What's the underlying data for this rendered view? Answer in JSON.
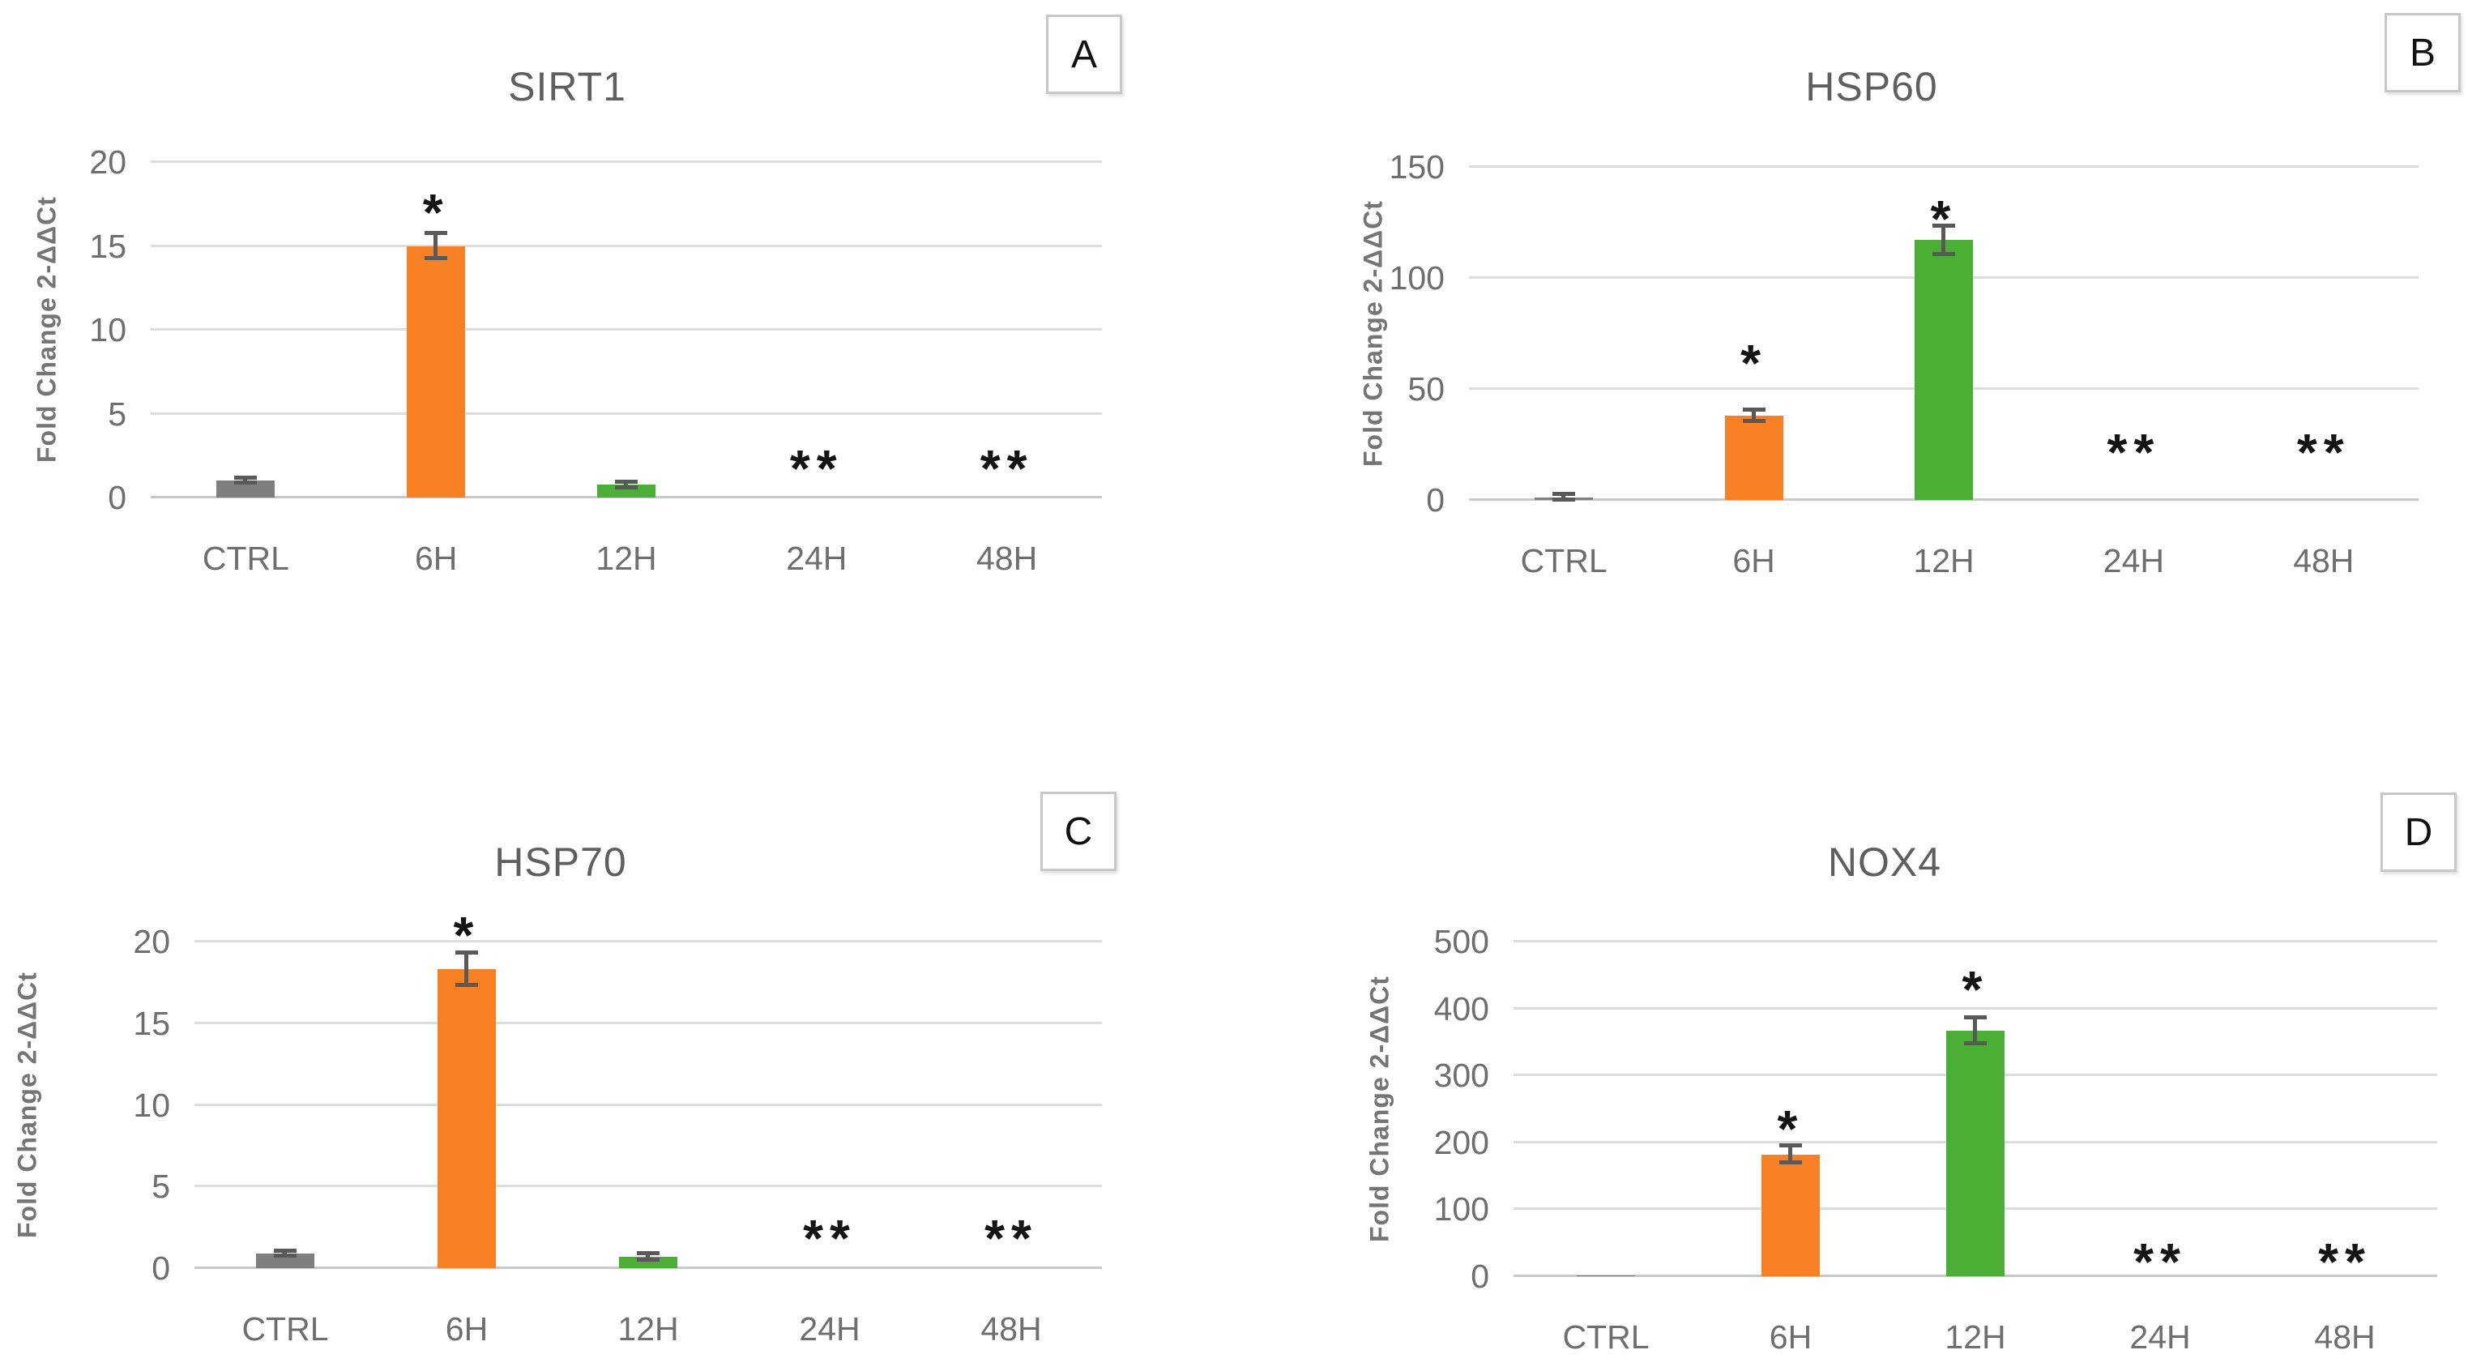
{
  "figure": {
    "background": "#FFFFFF",
    "ylabel": "Fold Change 2-ΔΔCt",
    "categories": [
      "CTRL",
      "6H",
      "12H",
      "24H",
      "48H"
    ],
    "significance_symbols": [
      "*",
      "**"
    ],
    "colors": {
      "ctrl_bar": "#7F7F7F",
      "h6_bar": "#F98125",
      "h12_bar": "#4CAF35",
      "error_bar": "#595959",
      "gridline": "#DCDCDC",
      "baseline": "#C9C9C9",
      "axis_text": "#6E6E6E",
      "title_text": "#5F5F5F",
      "significance": "#141414",
      "badge_border": "#C8C8C8"
    }
  },
  "chart_data": [
    {
      "type": "bar",
      "panel_label": "A",
      "title": "SIRT1",
      "xlabel": "",
      "ylabel": "Fold Change 2-ΔΔCt",
      "categories": [
        "CTRL",
        "6H",
        "12H",
        "24H",
        "48H"
      ],
      "values": [
        1.0,
        15.0,
        0.75,
        0,
        0
      ],
      "errors": [
        0.15,
        0.75,
        0.15,
        0,
        0
      ],
      "bar_colors": [
        "#7F7F7F",
        "#F98125",
        "#4CAF35",
        null,
        null
      ],
      "significance": [
        "",
        "*",
        "",
        "**",
        "**"
      ],
      "sig_y": [
        null,
        17.6,
        null,
        2.3,
        2.3
      ],
      "ylim": [
        0,
        20
      ],
      "yticks": [
        0,
        5,
        10,
        15,
        20
      ],
      "grid": true,
      "legend": false
    },
    {
      "type": "bar",
      "panel_label": "B",
      "title": "HSP60",
      "xlabel": "",
      "ylabel": "Fold Change 2-ΔΔCt",
      "categories": [
        "CTRL",
        "6H",
        "12H",
        "24H",
        "48H"
      ],
      "values": [
        1.0,
        38,
        117,
        0,
        0
      ],
      "errors": [
        1.5,
        2.5,
        6.5,
        0,
        0
      ],
      "bar_colors": [
        "#7F7F7F",
        "#F98125",
        "#4CAF35",
        null,
        null
      ],
      "significance": [
        "",
        "*",
        "*",
        "**",
        "**"
      ],
      "sig_y": [
        null,
        66,
        131,
        26,
        26
      ],
      "ylim": [
        0,
        150
      ],
      "yticks": [
        0,
        50,
        100,
        150
      ],
      "grid": true,
      "legend": false
    },
    {
      "type": "bar",
      "panel_label": "C",
      "title": "HSP70",
      "xlabel": "",
      "ylabel": "Fold Change 2-ΔΔCt",
      "categories": [
        "CTRL",
        "6H",
        "12H",
        "24H",
        "48H"
      ],
      "values": [
        0.9,
        18.3,
        0.7,
        0,
        0
      ],
      "errors": [
        0.15,
        1.0,
        0.2,
        0,
        0
      ],
      "bar_colors": [
        "#7F7F7F",
        "#F98125",
        "#4CAF35",
        null,
        null
      ],
      "significance": [
        "",
        "*",
        "",
        "**",
        "**"
      ],
      "sig_y": [
        null,
        21.0,
        null,
        2.45,
        2.45
      ],
      "ylim": [
        0,
        20
      ],
      "yticks": [
        0,
        5,
        10,
        15,
        20
      ],
      "grid": true,
      "legend": false
    },
    {
      "type": "bar",
      "panel_label": "D",
      "title": "NOX4",
      "xlabel": "",
      "ylabel": "Fold Change 2-ΔΔCt",
      "categories": [
        "CTRL",
        "6H",
        "12H",
        "24H",
        "48H"
      ],
      "values": [
        1.0,
        182,
        367,
        0,
        0
      ],
      "errors": [
        0,
        13,
        19,
        0,
        0
      ],
      "bar_colors": [
        "#7F7F7F",
        "#F98125",
        "#4CAF35",
        null,
        null
      ],
      "significance": [
        "",
        "*",
        "*",
        "**",
        "**"
      ],
      "sig_y": [
        null,
        235,
        443,
        36,
        36
      ],
      "ylim": [
        0,
        500
      ],
      "yticks": [
        0,
        100,
        200,
        300,
        400,
        500
      ],
      "grid": true,
      "legend": false
    }
  ]
}
